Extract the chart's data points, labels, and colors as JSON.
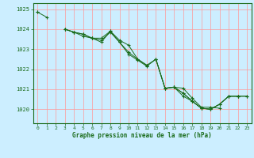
{
  "title": "Graphe pression niveau de la mer (hPa)",
  "bg_color": "#cceeff",
  "grid_color": "#ff9999",
  "line_color": "#1a6b1a",
  "marker_color": "#1a6b1a",
  "xlim": [
    -0.5,
    23.5
  ],
  "ylim": [
    1019.3,
    1025.3
  ],
  "yticks": [
    1020,
    1021,
    1022,
    1023,
    1024,
    1025
  ],
  "xticks": [
    0,
    1,
    2,
    3,
    4,
    5,
    6,
    7,
    8,
    9,
    10,
    11,
    12,
    13,
    14,
    15,
    16,
    17,
    18,
    19,
    20,
    21,
    22,
    23
  ],
  "series": [
    [
      1024.85,
      1024.6,
      null,
      1024.0,
      1023.85,
      1023.75,
      1023.55,
      1023.45,
      1023.85,
      1023.35,
      1022.85,
      1022.5,
      1022.2,
      null,
      null,
      1021.1,
      1020.65,
      1020.4,
      1020.05,
      1020.0,
      1020.25,
      1020.65,
      1020.65,
      null
    ],
    [
      1024.85,
      null,
      null,
      1024.0,
      1023.85,
      1023.65,
      1023.55,
      1023.55,
      1023.9,
      1023.45,
      1023.2,
      1022.5,
      1022.2,
      1022.5,
      1021.05,
      1021.1,
      1021.05,
      1020.55,
      1020.1,
      1020.1,
      1020.05,
      null,
      null,
      null
    ],
    [
      null,
      null,
      null,
      null,
      null,
      null,
      null,
      null,
      null,
      null,
      null,
      null,
      null,
      1022.5,
      1021.05,
      1021.1,
      1020.8,
      1020.4,
      1020.05,
      1020.0,
      1020.25,
      1020.65,
      1020.65,
      1020.65
    ],
    [
      null,
      null,
      null,
      1024.0,
      1023.85,
      1023.75,
      1023.55,
      1023.35,
      1023.9,
      1023.35,
      1022.75,
      1022.45,
      1022.15,
      1022.5,
      1021.05,
      1021.1,
      1020.8,
      1020.4,
      1020.05,
      1020.0,
      1020.25,
      1020.65,
      1020.65,
      1020.65
    ]
  ]
}
